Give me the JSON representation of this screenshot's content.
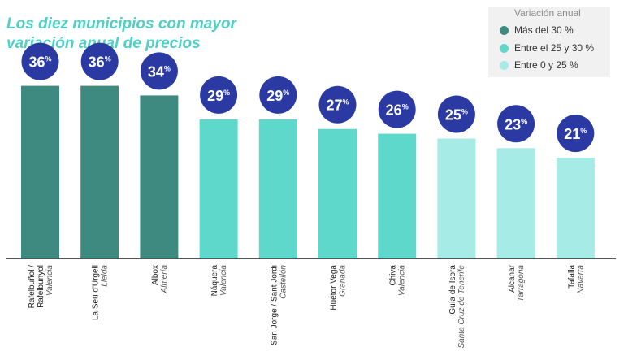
{
  "chart_data": {
    "type": "bar",
    "title": "Los diez municipios con mayor variación anual de precios",
    "xlabel": "",
    "ylabel": "",
    "ylim": [
      0,
      40
    ],
    "grid": false,
    "legend_position": "top-right",
    "legend": {
      "title": "Variación anual",
      "entries": [
        {
          "label": "Más del 30 %",
          "color": "#3e8a80"
        },
        {
          "label": "Entre el 25 y 30 %",
          "color": "#5fd8cc"
        },
        {
          "label": "Entre 0 y 25 %",
          "color": "#a6ebe6"
        }
      ]
    },
    "categories": [
      {
        "name": "Rafelbuñol / Rafelbunyol",
        "province": "Valencia"
      },
      {
        "name": "La Seu d'Urgell",
        "province": "Lleida"
      },
      {
        "name": "Albox",
        "province": "Almería"
      },
      {
        "name": "Náquera",
        "province": "Valencia"
      },
      {
        "name": "San Jorge / Sant Jordi",
        "province": "Castellón"
      },
      {
        "name": "Huétor Vega",
        "province": "Granada"
      },
      {
        "name": "Chiva",
        "province": "Valencia"
      },
      {
        "name": "Guía de Isora",
        "province": "Santa Cruz de Tenerife"
      },
      {
        "name": "Alcanar",
        "province": "Tarragona"
      },
      {
        "name": "Tafalla",
        "province": "Navarra"
      }
    ],
    "values": [
      36,
      36,
      34,
      29,
      29,
      27,
      26,
      25,
      23,
      21
    ],
    "value_suffix": "%",
    "group": [
      0,
      0,
      0,
      1,
      1,
      1,
      1,
      2,
      2,
      2
    ],
    "colors": {
      "bubble": "#2b3aa2",
      "bubble_text": "#ffffff",
      "axis": "#555555",
      "label": "#222222",
      "sublabel": "#555555"
    }
  }
}
